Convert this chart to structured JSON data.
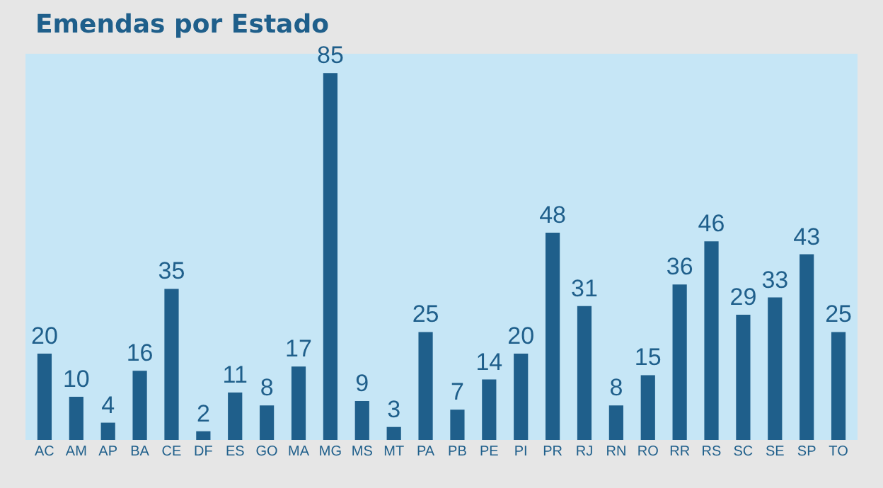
{
  "chart_data": {
    "type": "bar",
    "title": "Emendas por Estado",
    "categories": [
      "AC",
      "AM",
      "AP",
      "BA",
      "CE",
      "DF",
      "ES",
      "GO",
      "MA",
      "MG",
      "MS",
      "MT",
      "PA",
      "PB",
      "PE",
      "PI",
      "PR",
      "RJ",
      "RN",
      "RO",
      "RR",
      "RS",
      "SC",
      "SE",
      "SP",
      "TO"
    ],
    "values": [
      20,
      10,
      4,
      16,
      35,
      2,
      11,
      8,
      17,
      85,
      9,
      3,
      25,
      7,
      14,
      20,
      48,
      31,
      8,
      15,
      36,
      46,
      29,
      33,
      43,
      25
    ],
    "color": "#1f5f8b",
    "data_labels": true,
    "grid": false,
    "tick_labels": "x"
  }
}
